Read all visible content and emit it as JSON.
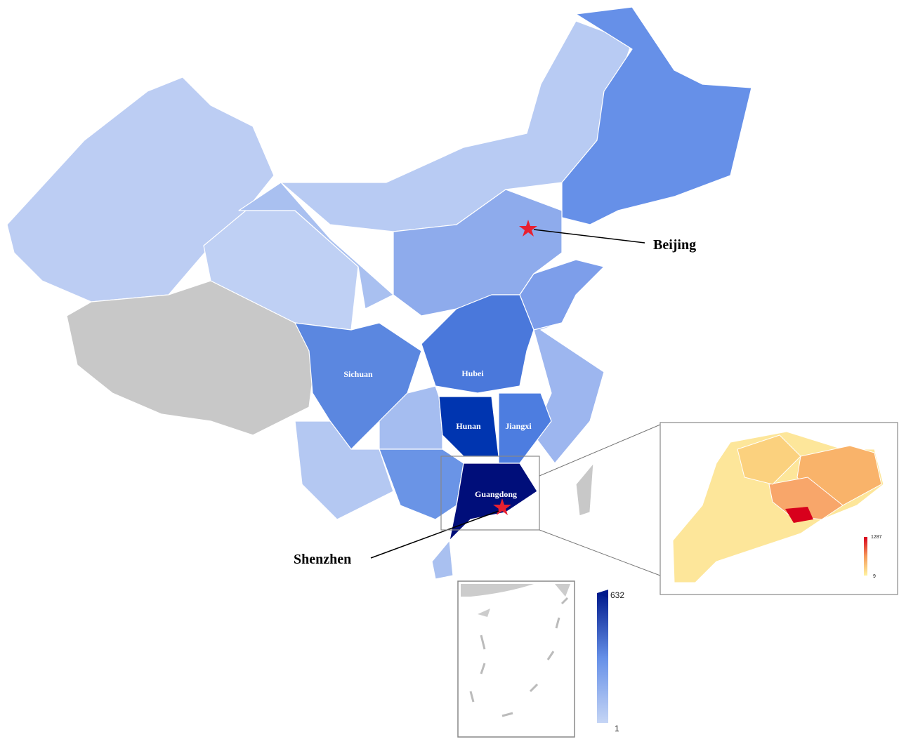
{
  "labels": {
    "beijing": "Beijing",
    "shenzhen": "Shenzhen",
    "sichuan": "Sichuan",
    "hubei": "Hubei",
    "hunan": "Hunan",
    "jiangxi": "Jiangxi",
    "guangdong": "Guangdong"
  },
  "legend": {
    "max": 632,
    "min": 1
  },
  "inset_legend": {
    "max": 1287,
    "min": 9
  }
}
